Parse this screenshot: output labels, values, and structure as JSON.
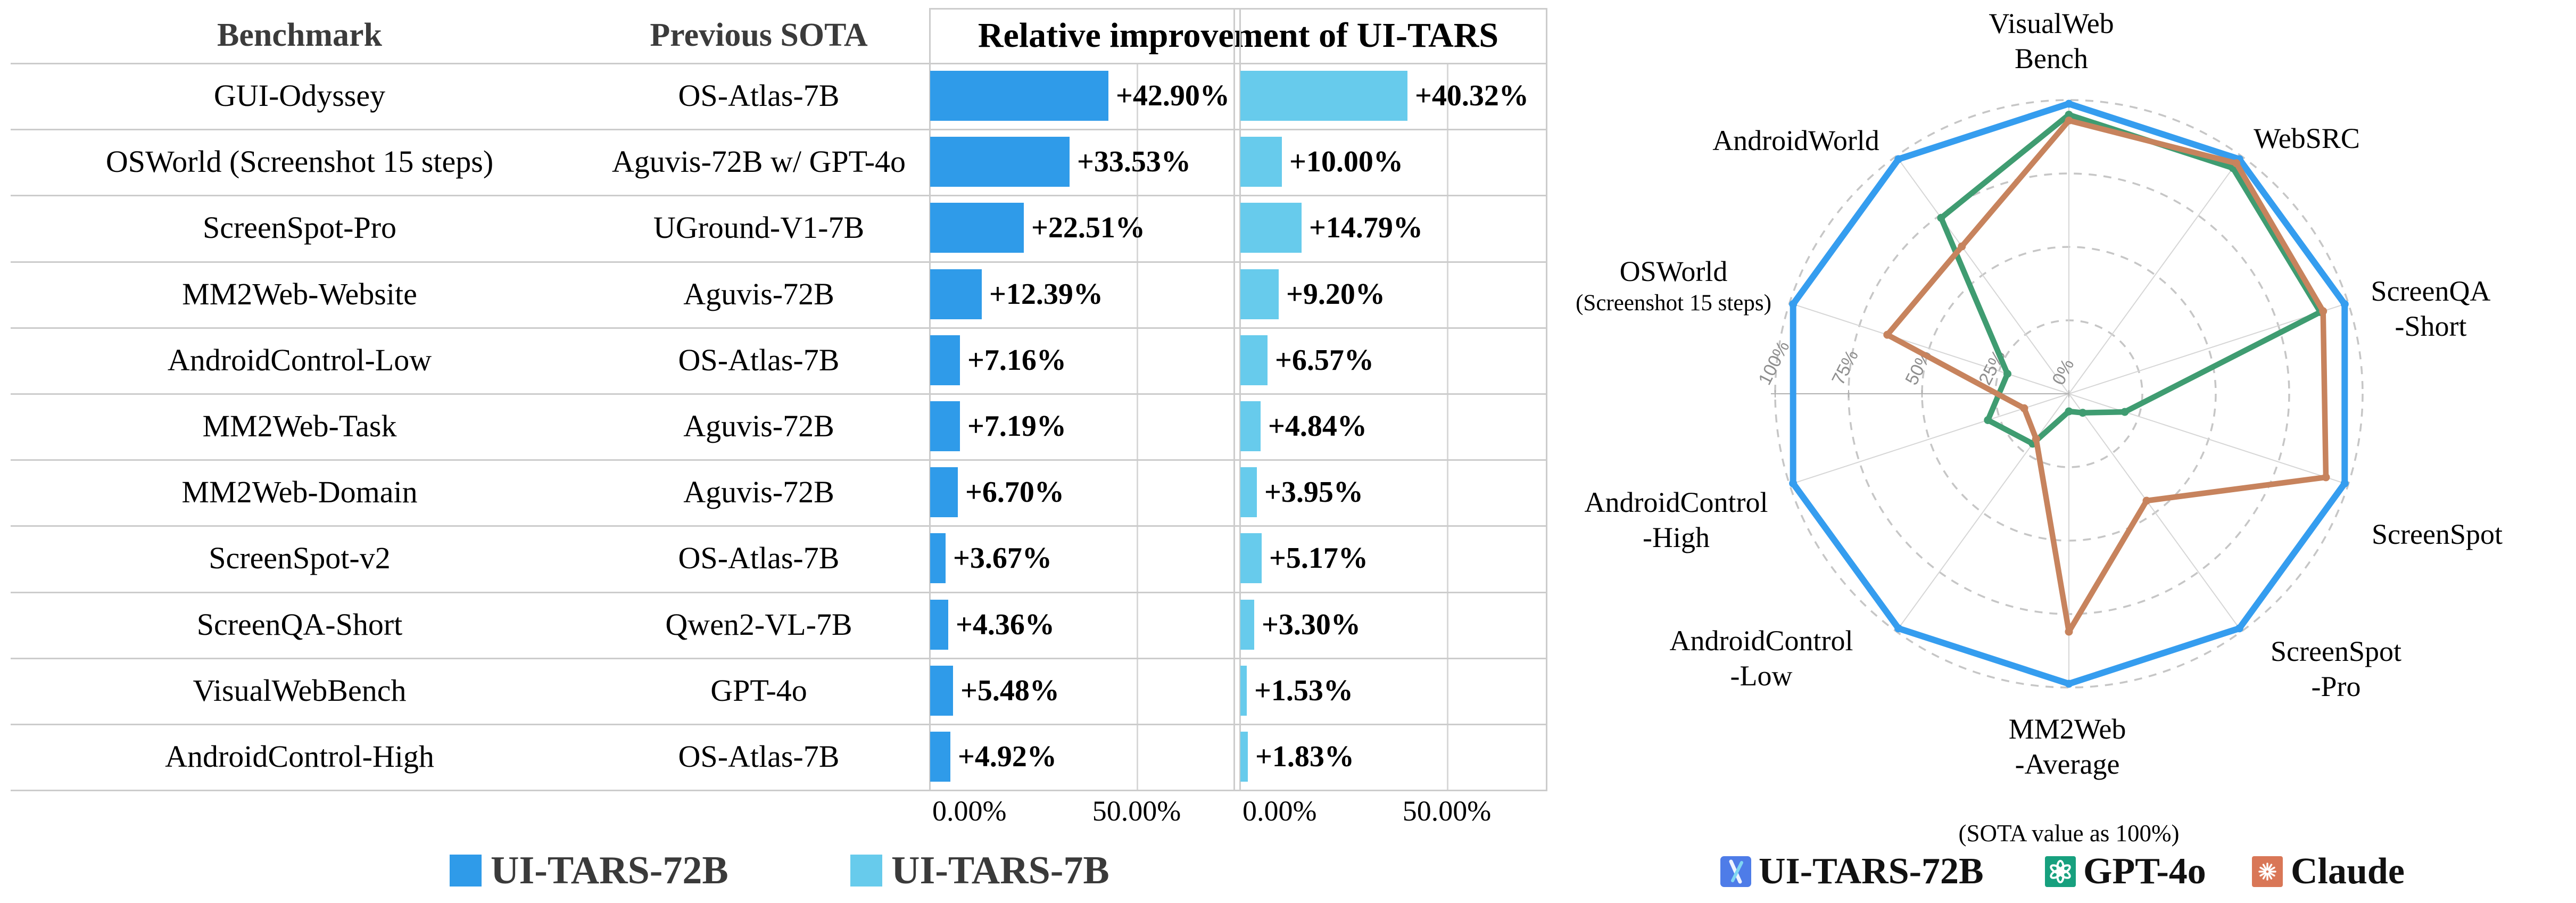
{
  "chart_data": [
    {
      "type": "bar",
      "title": "Relative improvement of UI-TARS",
      "col_headers": [
        "Benchmark",
        "Previous SOTA"
      ],
      "categories": [
        "GUI-Odyssey",
        "OSWorld (Screenshot 15 steps)",
        "ScreenSpot-Pro",
        "MM2Web-Website",
        "AndroidControl-Low",
        "MM2Web-Task",
        "MM2Web-Domain",
        "ScreenSpot-v2",
        "ScreenQA-Short",
        "VisualWebBench",
        "AndroidControl-High"
      ],
      "prev_sota": [
        "OS-Atlas-7B",
        "Aguvis-72B w/ GPT-4o",
        "UGround-V1-7B",
        "Aguvis-72B",
        "OS-Atlas-7B",
        "Aguvis-72B",
        "Aguvis-72B",
        "OS-Atlas-7B",
        "Qwen2-VL-7B",
        "GPT-4o",
        "OS-Atlas-7B"
      ],
      "series": [
        {
          "name": "UI-TARS-72B",
          "color": "#2F9BE9",
          "values": [
            42.9,
            33.53,
            22.51,
            12.39,
            7.16,
            7.19,
            6.7,
            3.67,
            4.36,
            5.48,
            4.92
          ],
          "labels": [
            "+42.90%",
            "+33.53%",
            "+22.51%",
            "+12.39%",
            "+7.16%",
            "+7.19%",
            "+6.70%",
            "+3.67%",
            "+4.36%",
            "+5.48%",
            "+4.92%"
          ]
        },
        {
          "name": "UI-TARS-7B",
          "color": "#67CBEC",
          "values": [
            40.32,
            10.0,
            14.79,
            9.2,
            6.57,
            4.84,
            3.95,
            5.17,
            3.3,
            1.53,
            1.83
          ],
          "labels": [
            "+40.32%",
            "+10.00%",
            "+14.79%",
            "+9.20%",
            "+6.57%",
            "+4.84%",
            "+3.95%",
            "+5.17%",
            "+3.30%",
            "+1.53%",
            "+1.83%"
          ]
        }
      ],
      "ticks": [
        "0.00%",
        "50.00%"
      ],
      "xlim": [
        0,
        73.6
      ],
      "grid": "on"
    },
    {
      "type": "radar",
      "note": "(SOTA value as 100%)",
      "ring_labels": [
        "100%",
        "75%",
        "50%",
        "25%",
        "0%"
      ],
      "ring_values": [
        100,
        75,
        50,
        25,
        0
      ],
      "axes": [
        {
          "label": "VisualWebBench",
          "lines": [
            "VisualWeb",
            "Bench"
          ]
        },
        {
          "label": "WebSRC",
          "lines": [
            "WebSRC"
          ]
        },
        {
          "label": "ScreenQA-Short",
          "lines": [
            "ScreenQA",
            "-Short"
          ]
        },
        {
          "label": "ScreenSpot",
          "lines": [
            "ScreenSpot"
          ]
        },
        {
          "label": "ScreenSpot-Pro",
          "lines": [
            "ScreenSpot",
            "-Pro"
          ]
        },
        {
          "label": "MM2Web-Average",
          "lines": [
            "MM2Web",
            "-Average"
          ]
        },
        {
          "label": "AndroidControl-Low",
          "lines": [
            "AndroidControl",
            "-Low"
          ]
        },
        {
          "label": "AndroidControl-High",
          "lines": [
            "AndroidControl",
            "-High"
          ]
        },
        {
          "label": "OSWorld (Screenshot 15 steps)",
          "lines": [
            "OSWorld",
            "(Screenshot 15 steps)"
          ]
        },
        {
          "label": "AndroidWorld",
          "lines": [
            "AndroidWorld"
          ]
        }
      ],
      "series": [
        {
          "name": "UI-TARS-72B",
          "color": "#359DEF",
          "values": [
            100,
            100,
            100,
            100,
            100,
            100,
            100,
            100,
            100,
            100
          ]
        },
        {
          "name": "GPT-4o",
          "color": "#3F9C71",
          "values": [
            95,
            95,
            90,
            20,
            8,
            6,
            21,
            29,
            22,
            74
          ]
        },
        {
          "name": "Claude",
          "color": "#C7835D",
          "values": [
            93,
            97,
            91,
            92,
            45,
            81,
            19,
            16,
            65,
            62
          ]
        }
      ],
      "legend_colors": {
        "ui_tars": "#4E7CE8",
        "gpt4o": "#17A07E",
        "claude": "#D97757"
      }
    }
  ]
}
